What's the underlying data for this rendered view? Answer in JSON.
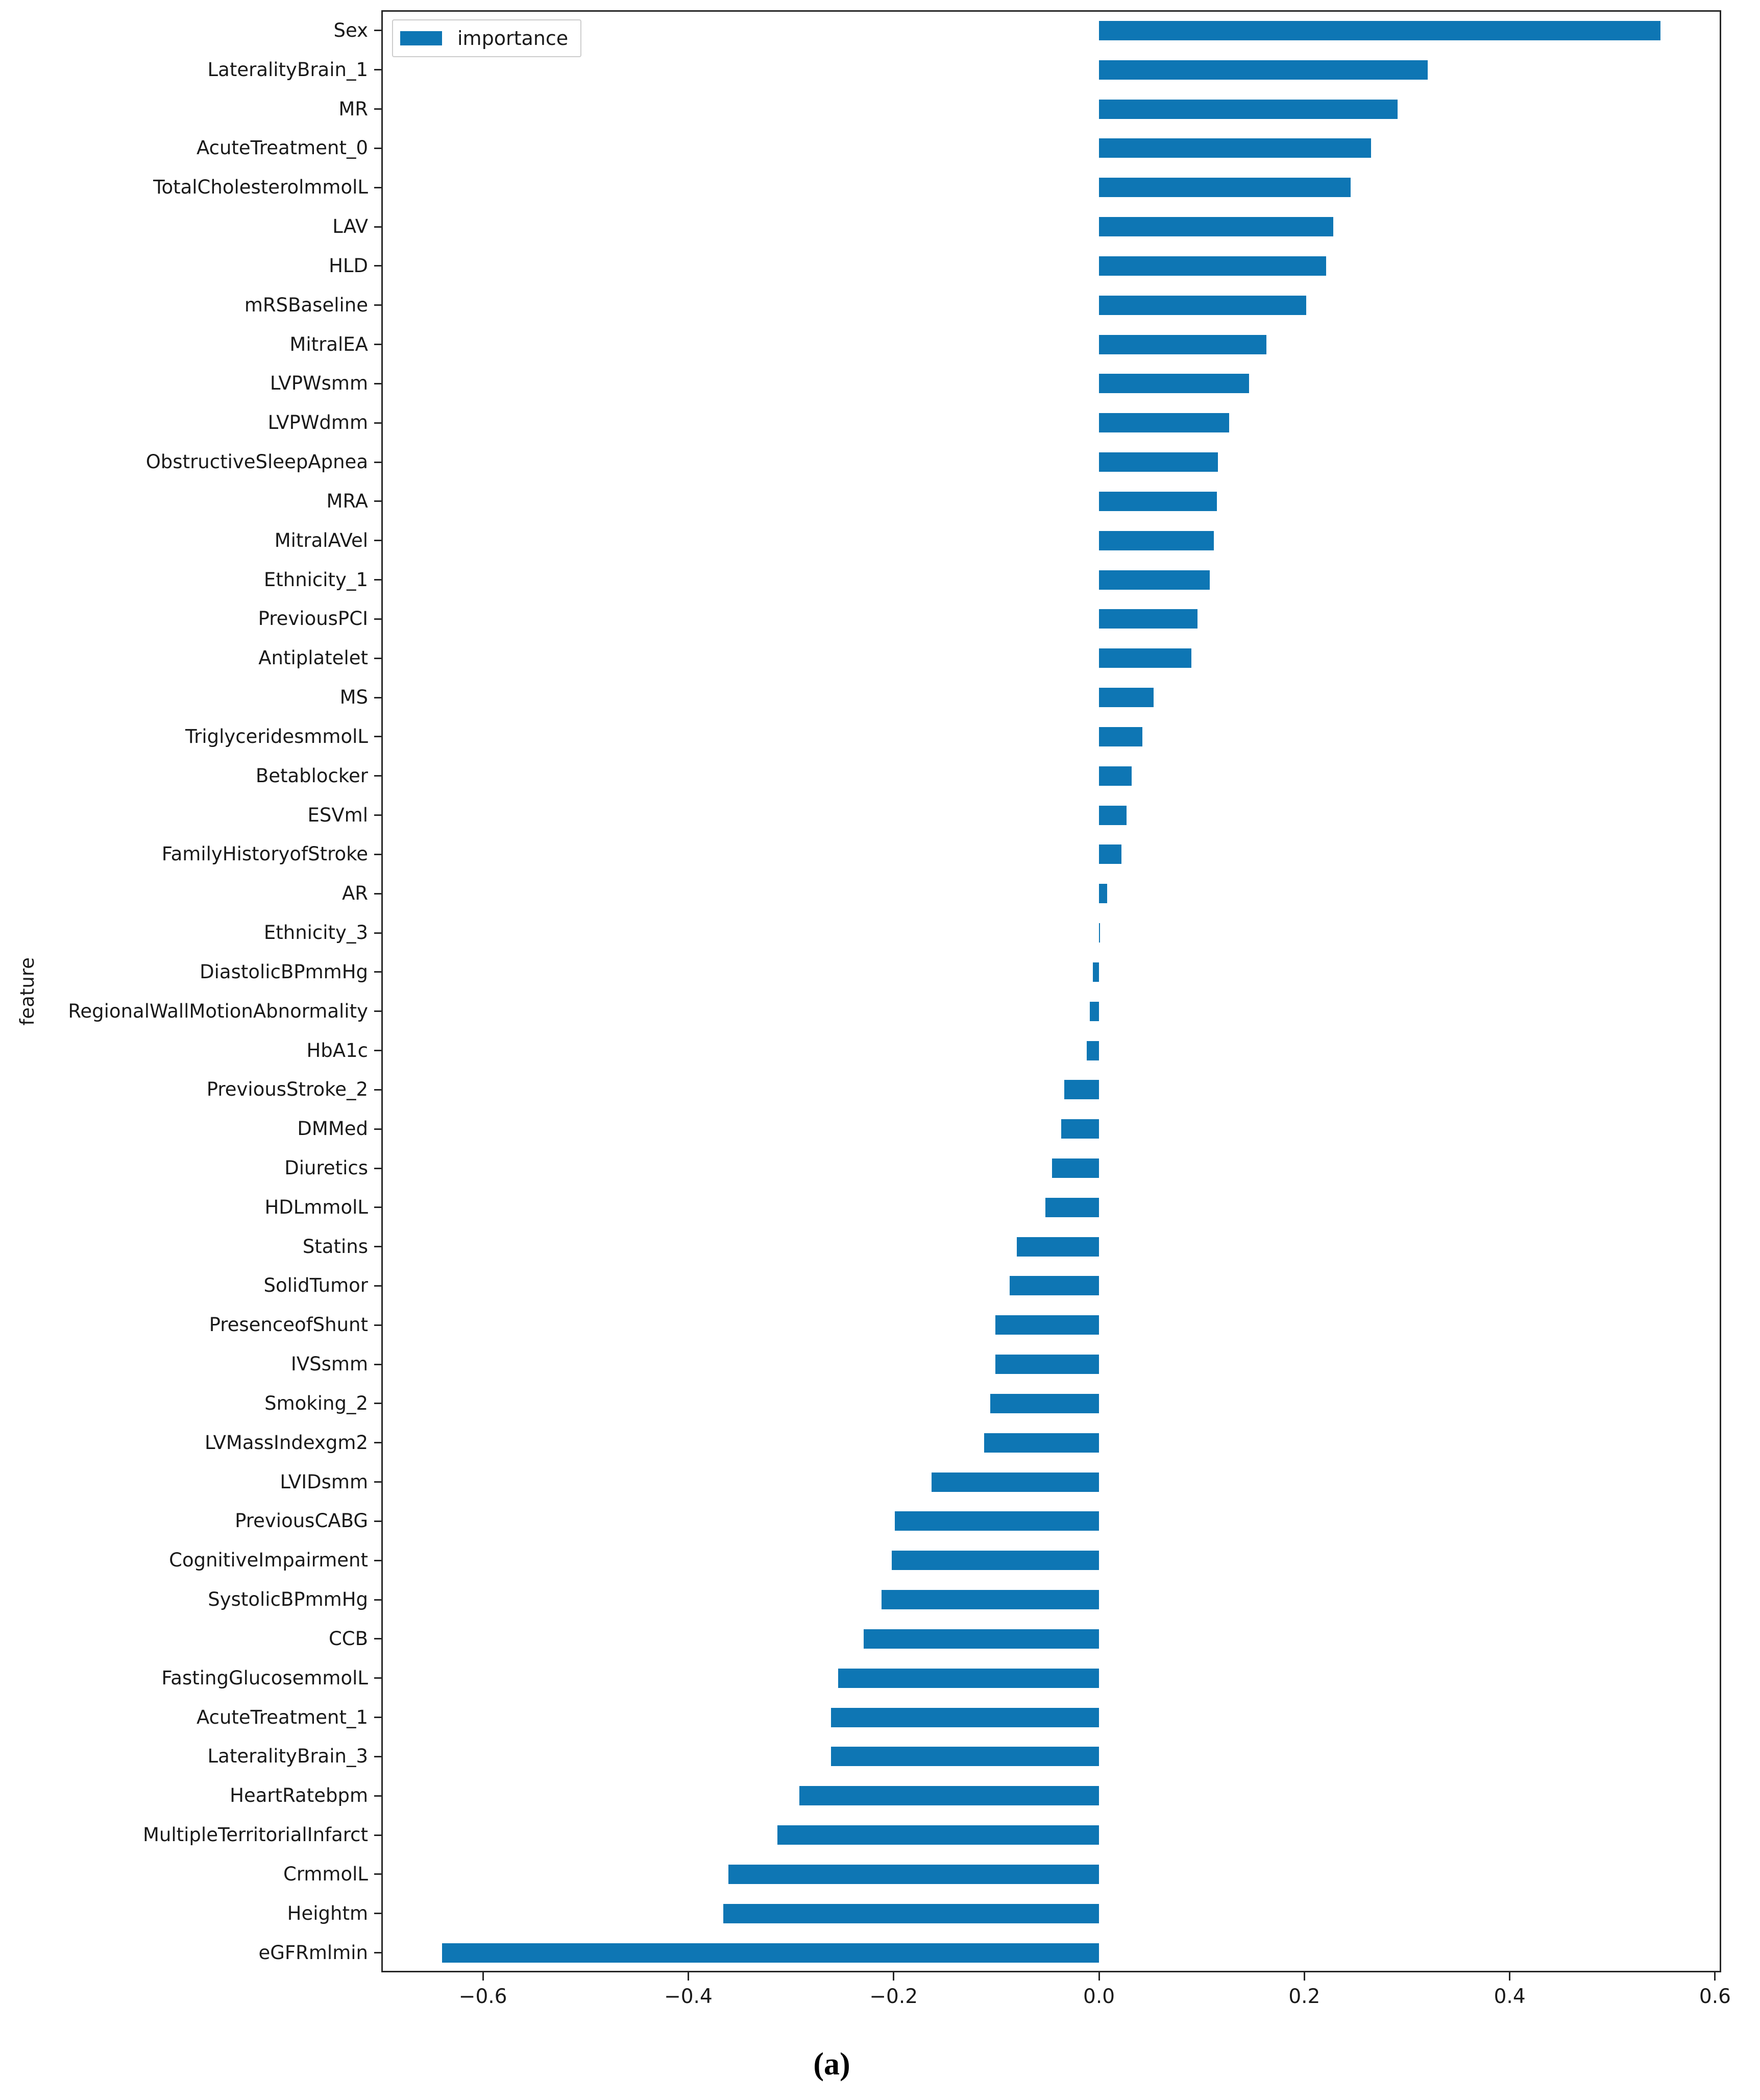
{
  "figure": {
    "caption": "(a)"
  },
  "chart_data": {
    "type": "bar",
    "orientation": "horizontal",
    "title": "",
    "xlabel": "",
    "ylabel": "feature",
    "legend": [
      {
        "label": "importance",
        "color": "#0e76b4"
      }
    ],
    "legend_position": "upper left",
    "grid": false,
    "bar_color": "#0e76b4",
    "axis_color": "#262626",
    "xlim": [
      -0.699,
      0.606
    ],
    "x_ticks": [
      -0.6,
      -0.4,
      -0.2,
      0.0,
      0.2,
      0.4,
      0.6
    ],
    "x_tick_labels": [
      "−0.6",
      "−0.4",
      "−0.2",
      "0.0",
      "0.2",
      "0.4",
      "0.6"
    ],
    "categories": [
      "Sex",
      "LateralityBrain_1",
      "MR",
      "AcuteTreatment_0",
      "TotalCholesterolmmolL",
      "LAV",
      "HLD",
      "mRSBaseline",
      "MitralEA",
      "LVPWsmm",
      "LVPWdmm",
      "ObstructiveSleepApnea",
      "MRA",
      "MitralAVel",
      "Ethnicity_1",
      "PreviousPCI",
      "Antiplatelet",
      "MS",
      "TriglyceridesmmolL",
      "Betablocker",
      "ESVml",
      "FamilyHistoryofStroke",
      "AR",
      "Ethnicity_3",
      "DiastolicBPmmHg",
      "RegionalWallMotionAbnormality",
      "HbA1c",
      "PreviousStroke_2",
      "DMMed",
      "Diuretics",
      "HDLmmolL",
      "Statins",
      "SolidTumor",
      "PresenceofShunt",
      "IVSsmm",
      "Smoking_2",
      "LVMassIndexgm2",
      "LVIDsmm",
      "PreviousCABG",
      "CognitiveImpairment",
      "SystolicBPmmHg",
      "CCB",
      "FastingGlucosemmolL",
      "AcuteTreatment_1",
      "LateralityBrain_3",
      "HeartRatebpm",
      "MultipleTerritorialInfarct",
      "CrmmolL",
      "Heightm",
      "eGFRmlmin"
    ],
    "values": [
      0.547,
      0.32,
      0.291,
      0.265,
      0.245,
      0.228,
      0.221,
      0.202,
      0.163,
      0.146,
      0.127,
      0.116,
      0.115,
      0.112,
      0.108,
      0.096,
      0.09,
      0.053,
      0.042,
      0.032,
      0.027,
      0.022,
      0.008,
      0.001,
      -0.006,
      -0.009,
      -0.012,
      -0.034,
      -0.037,
      -0.046,
      -0.052,
      -0.08,
      -0.087,
      -0.101,
      -0.101,
      -0.106,
      -0.112,
      -0.163,
      -0.199,
      -0.202,
      -0.212,
      -0.229,
      -0.254,
      -0.261,
      -0.261,
      -0.292,
      -0.313,
      -0.361,
      -0.366,
      -0.64
    ]
  }
}
